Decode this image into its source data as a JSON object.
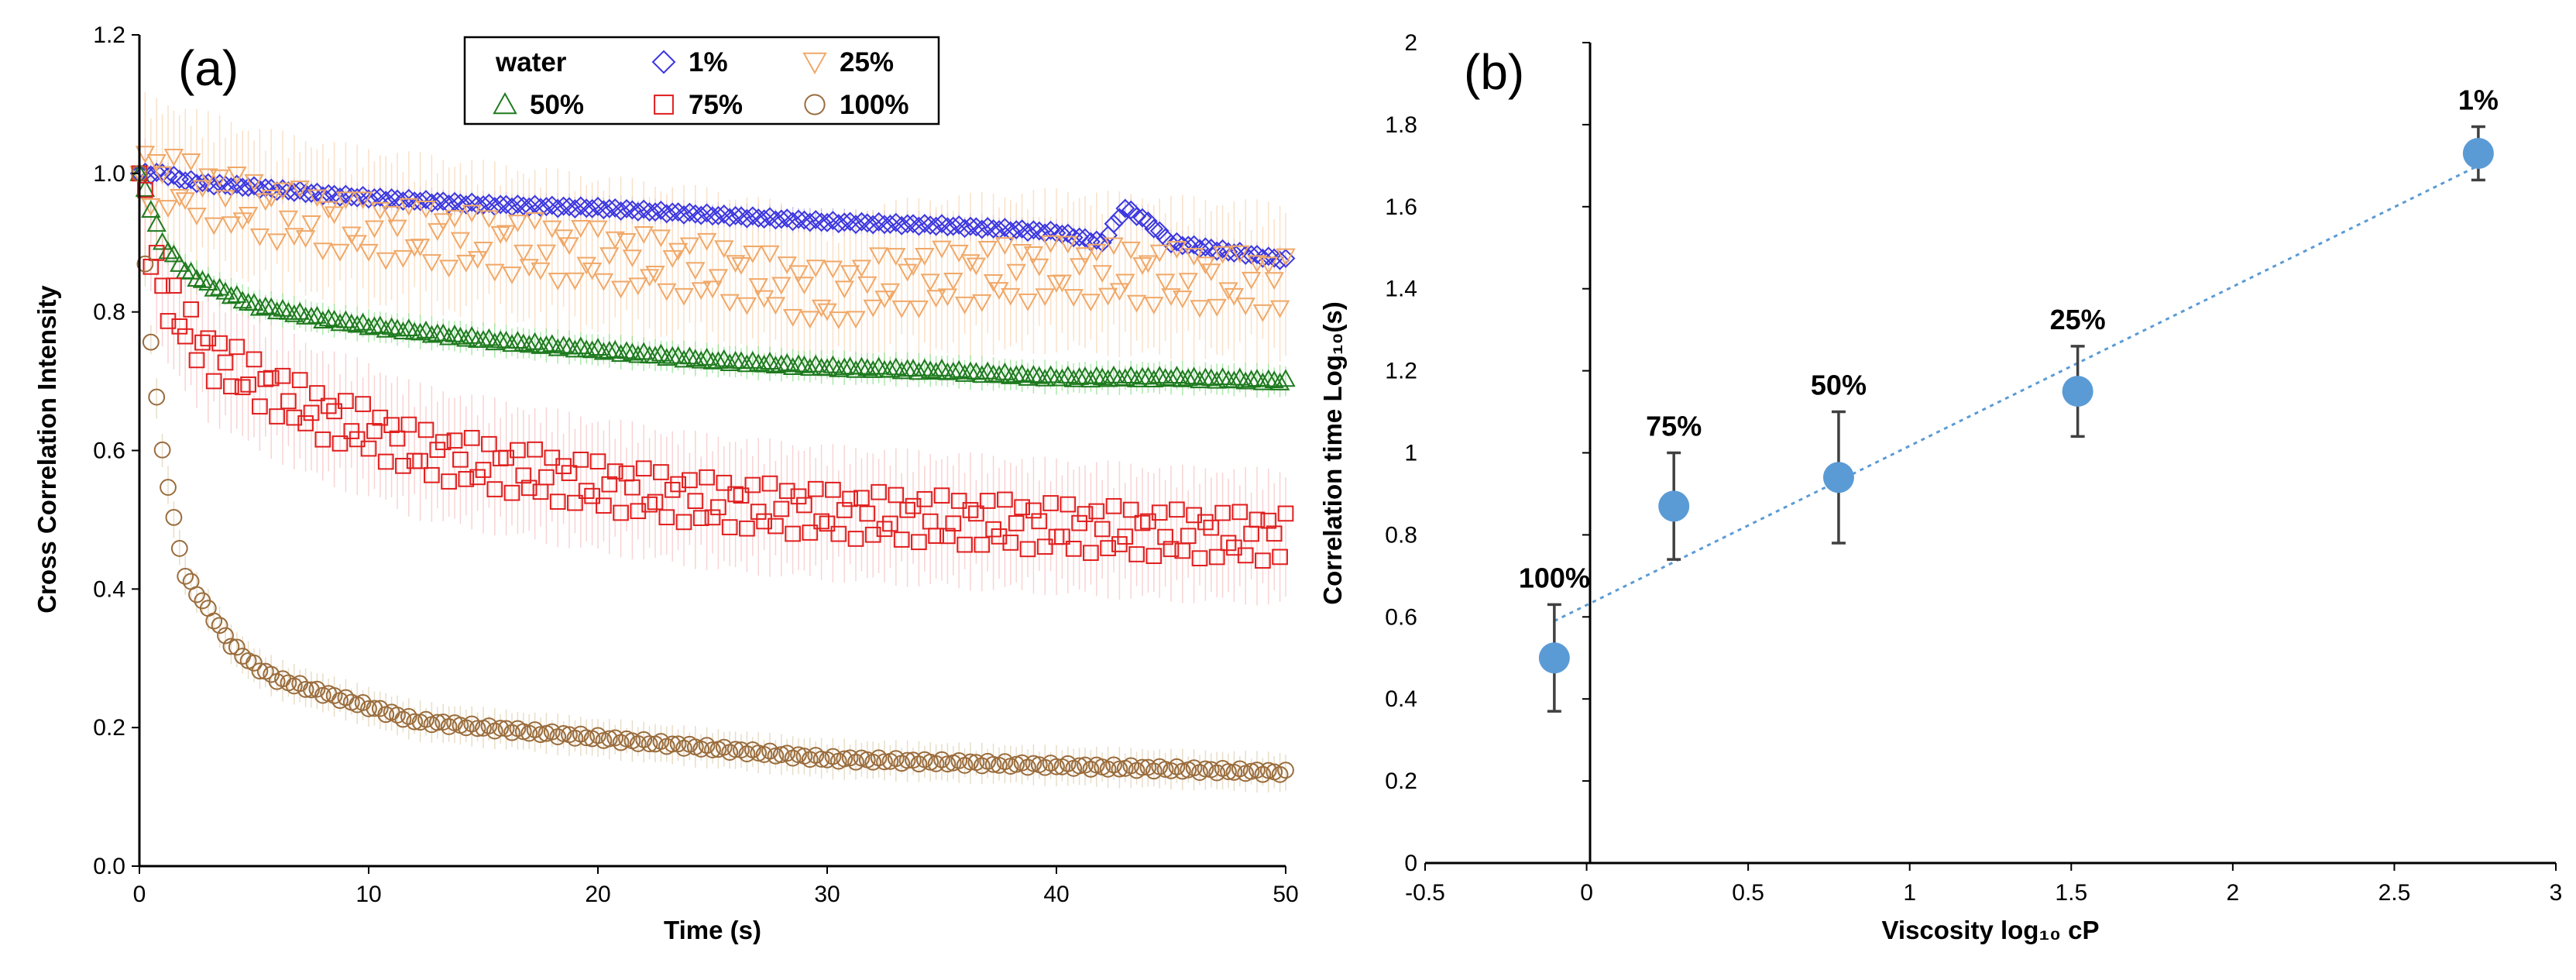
{
  "chart_data": [
    {
      "type": "scatter",
      "panel_label": "(a)",
      "xlabel": "Time (s)",
      "ylabel": "Cross Correlation Intensity",
      "xlim": [
        0,
        50
      ],
      "ylim": [
        0,
        1.2
      ],
      "xticks": [
        "0",
        "10",
        "20",
        "30",
        "40",
        "50"
      ],
      "yticks": [
        "0.0",
        "0.2",
        "0.4",
        "0.6",
        "0.8",
        "1.0",
        "1.2"
      ],
      "legend_position": "top-center",
      "legend_title": "water",
      "series": [
        {
          "name": "1%",
          "marker": "diamond",
          "color": "#3b36e0",
          "errcolor": "#a8a6f2",
          "x": [
            0,
            1,
            2,
            3,
            5,
            8,
            10,
            15,
            20,
            25,
            30,
            35,
            40,
            42,
            43,
            44,
            45,
            48,
            50
          ],
          "y": [
            1.0,
            1.0,
            0.99,
            0.985,
            0.98,
            0.97,
            0.965,
            0.955,
            0.95,
            0.94,
            0.93,
            0.925,
            0.915,
            0.9,
            0.95,
            0.93,
            0.9,
            0.885,
            0.875
          ],
          "err": 0.02
        },
        {
          "name": "25%",
          "marker": "triangle-down",
          "color": "#f0a868",
          "errcolor": "#f8d4b0",
          "x": [
            0,
            2,
            5,
            8,
            10,
            15,
            20,
            25,
            28,
            30,
            32,
            35,
            40,
            45,
            50
          ],
          "y": [
            1.0,
            0.98,
            0.95,
            0.93,
            0.92,
            0.9,
            0.88,
            0.86,
            0.84,
            0.82,
            0.84,
            0.85,
            0.86,
            0.85,
            0.84
          ],
          "err": 0.12
        },
        {
          "name": "50%",
          "marker": "triangle-up",
          "color": "#1f7a1f",
          "errcolor": "#88e088",
          "x": [
            0,
            0.5,
            1,
            2,
            3,
            5,
            8,
            10,
            15,
            20,
            25,
            30,
            35,
            40,
            45,
            50
          ],
          "y": [
            1.0,
            0.95,
            0.9,
            0.86,
            0.84,
            0.81,
            0.79,
            0.78,
            0.76,
            0.745,
            0.73,
            0.72,
            0.715,
            0.705,
            0.705,
            0.7
          ],
          "err": 0.025
        },
        {
          "name": "75%",
          "marker": "square",
          "color": "#e01e1e",
          "errcolor": "#f5c0c0",
          "x": [
            0,
            0.5,
            1,
            2,
            3,
            5,
            8,
            10,
            12,
            15,
            20,
            25,
            30,
            35,
            40,
            45,
            50
          ],
          "y": [
            1.0,
            0.9,
            0.83,
            0.78,
            0.74,
            0.7,
            0.65,
            0.63,
            0.6,
            0.58,
            0.55,
            0.525,
            0.51,
            0.5,
            0.49,
            0.48,
            0.475
          ],
          "err": 0.1
        },
        {
          "name": "100%",
          "marker": "circle",
          "color": "#9a6c3c",
          "errcolor": "#ded0b0",
          "x": [
            0,
            0.3,
            0.6,
            1,
            1.5,
            2,
            3,
            4,
            5,
            6,
            8,
            10,
            12,
            15,
            20,
            25,
            30,
            35,
            40,
            45,
            50
          ],
          "y": [
            1.0,
            0.84,
            0.72,
            0.6,
            0.5,
            0.42,
            0.37,
            0.32,
            0.29,
            0.27,
            0.25,
            0.23,
            0.21,
            0.2,
            0.185,
            0.17,
            0.155,
            0.15,
            0.145,
            0.14,
            0.135
          ],
          "err": 0.03
        }
      ]
    },
    {
      "type": "scatter",
      "panel_label": "(b)",
      "xlabel": "Viscosity log₁₀ cP",
      "ylabel": "Correlation time Log₁₀(s)",
      "xlim": [
        -0.5,
        3
      ],
      "ylim": [
        0,
        2
      ],
      "xticks": [
        "-0.5",
        "0",
        "0.5",
        "1",
        "1.5",
        "2",
        "2.5",
        "3"
      ],
      "yticks": [
        "0",
        "0.2",
        "0.4",
        "0.6",
        "0.8",
        "1",
        "1.2",
        "1.4",
        "1.6",
        "1.8",
        "2"
      ],
      "marker_color": "#5b9bd5",
      "errbar_color": "#404040",
      "trendline_color": "#5b9bd5",
      "points": [
        {
          "label": "100%",
          "x": -0.1,
          "y": 0.5,
          "err": 0.13
        },
        {
          "label": "75%",
          "x": 0.27,
          "y": 0.87,
          "err": 0.13
        },
        {
          "label": "50%",
          "x": 0.78,
          "y": 0.94,
          "err": 0.16
        },
        {
          "label": "25%",
          "x": 1.52,
          "y": 1.15,
          "err": 0.11
        },
        {
          "label": "1%",
          "x": 2.76,
          "y": 1.73,
          "err": 0.065
        }
      ],
      "trendline": {
        "x": [
          -0.1,
          2.76
        ],
        "y": [
          0.59,
          1.7
        ]
      }
    }
  ]
}
